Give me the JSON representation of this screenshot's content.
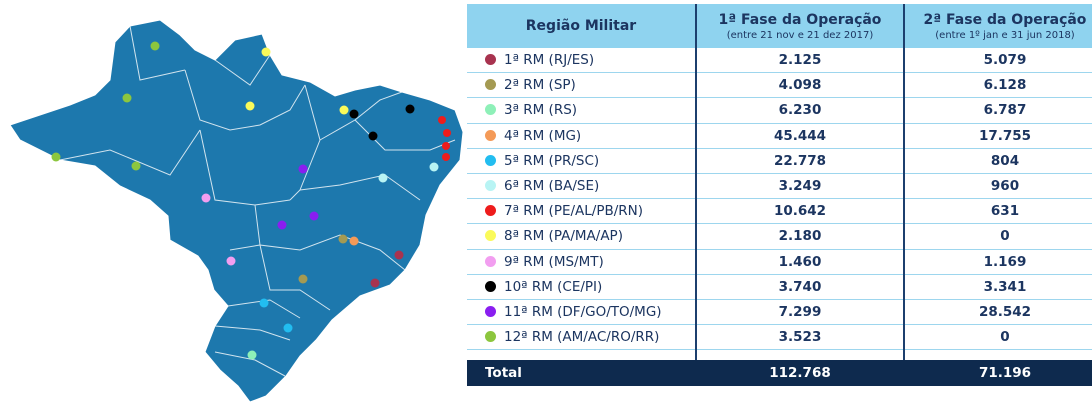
{
  "table": {
    "headers": [
      {
        "title": "Região Militar"
      },
      {
        "title": "1ª Fase da Operação",
        "subtitle": "(entre 21 nov e 21 dez 2017)"
      },
      {
        "title": "2ª Fase da Operação",
        "subtitle": "(entre 1º jan e 31 jun 2018)"
      }
    ],
    "rows": [
      {
        "color": "#a8334f",
        "label": "1ª RM (RJ/ES)",
        "fase1": "2.125",
        "fase2": "5.079"
      },
      {
        "color": "#a49a52",
        "label": "2ª RM (SP)",
        "fase1": "4.098",
        "fase2": "6.128"
      },
      {
        "color": "#8ef0b8",
        "label": "3ª RM (RS)",
        "fase1": "6.230",
        "fase2": "6.787"
      },
      {
        "color": "#f49a58",
        "label": "4ª RM (MG)",
        "fase1": "45.444",
        "fase2": "17.755"
      },
      {
        "color": "#22bdf0",
        "label": "5ª RM (PR/SC)",
        "fase1": "22.778",
        "fase2": "804"
      },
      {
        "color": "#b8f4f4",
        "label": "6ª RM (BA/SE)",
        "fase1": "3.249",
        "fase2": "960"
      },
      {
        "color": "#ee1c1c",
        "label": "7ª RM (PE/AL/PB/RN)",
        "fase1": "10.642",
        "fase2": "631"
      },
      {
        "color": "#fafa5a",
        "label": "8ª RM (PA/MA/AP)",
        "fase1": "2.180",
        "fase2": "0"
      },
      {
        "color": "#f29ef0",
        "label": "9ª RM (MS/MT)",
        "fase1": "1.460",
        "fase2": "1.169"
      },
      {
        "color": "#000000",
        "label": "10ª RM (CE/PI)",
        "fase1": "3.740",
        "fase2": "3.341"
      },
      {
        "color": "#8a1ef0",
        "label": "11ª RM (DF/GO/TO/MG)",
        "fase1": "7.299",
        "fase2": "28.542"
      },
      {
        "color": "#8cc63e",
        "label": "12ª RM (AM/AC/RO/RR)",
        "fase1": "3.523",
        "fase2": "0"
      }
    ],
    "total": {
      "label": "Total",
      "fase1": "112.768",
      "fase2": "71.196"
    }
  }
}
